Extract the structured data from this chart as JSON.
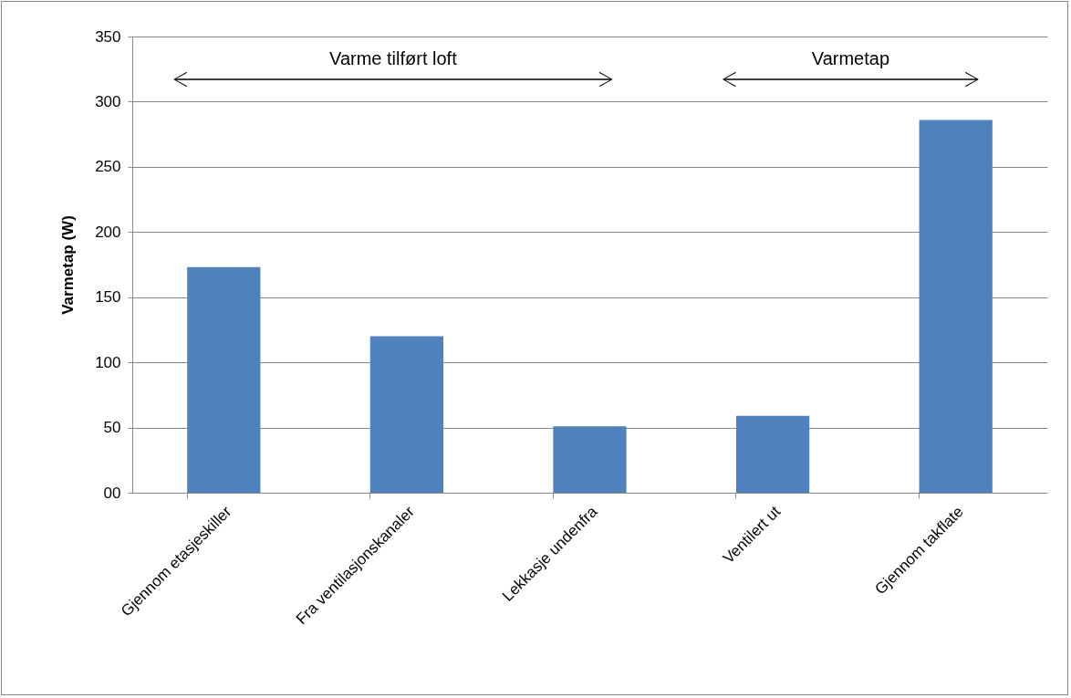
{
  "chart_data": {
    "type": "bar",
    "ylabel": "Varmetap (W)",
    "categories": [
      "Gjennom etasjeskiller",
      "Fra ventilasjonskanaler",
      "Lekkasje undenfra",
      "Ventilert ut",
      "Gjennom takflate"
    ],
    "values": [
      173,
      120,
      51,
      59,
      286
    ],
    "color": "#4f81bd",
    "ylim": [
      0,
      350
    ],
    "yticks": [
      {
        "value": 0,
        "label": "00"
      },
      50,
      100,
      150,
      200,
      250,
      300,
      350
    ],
    "grid": "y",
    "annotations": [
      "Varme tilført loft",
      "Varmetap"
    ]
  }
}
